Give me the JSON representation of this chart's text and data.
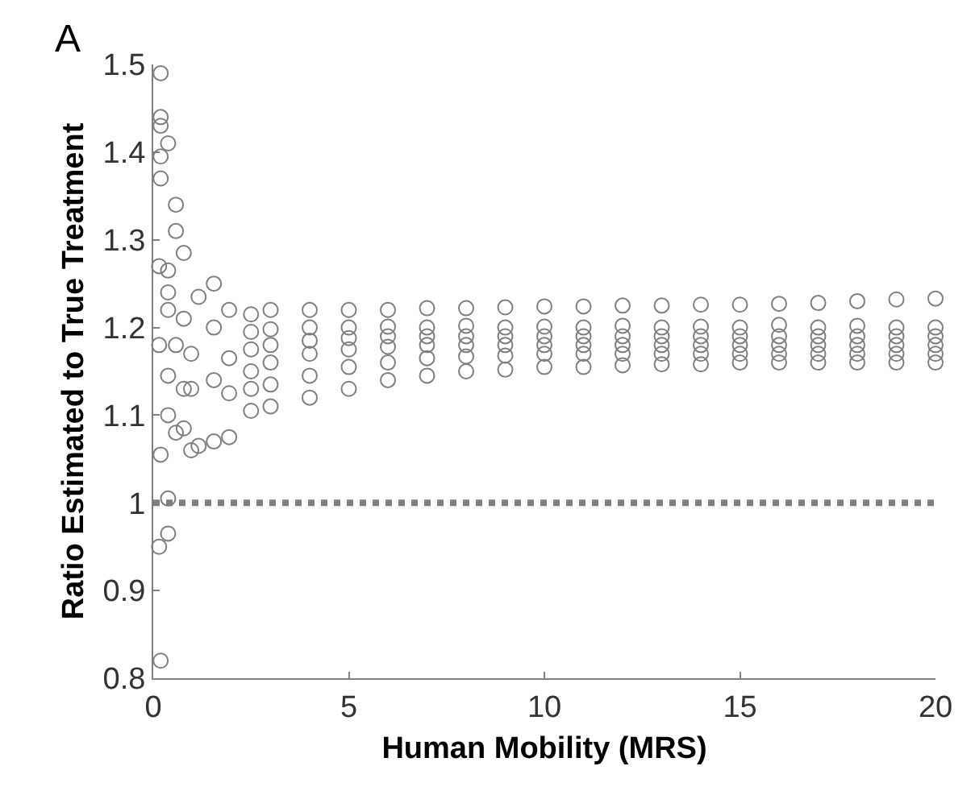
{
  "chart_data": {
    "type": "scatter",
    "xlabel": "Human Mobility (MRS)",
    "ylabel": "Ratio Estimated to True Treatment",
    "annotations": [
      "A"
    ],
    "xlim": [
      0,
      20
    ],
    "xticks": [
      0,
      5,
      10,
      15,
      20
    ],
    "ylim": [
      0.8,
      1.5
    ],
    "yticks": [
      0.8,
      0.9,
      1,
      1.1,
      1.2,
      1.3,
      1.4,
      1.5
    ],
    "marker": "circle",
    "ref_lines": [
      {
        "axis": "y",
        "value": 1,
        "color": "#7f7f7f",
        "line_style": "dotted"
      }
    ],
    "series": [
      {
        "color": "#7f7f7f",
        "x": [
          0.19,
          0.19,
          0.19,
          0.19,
          0.19,
          0.38,
          0.58,
          0.58,
          0.78,
          0.15,
          0.38,
          0.38,
          0.38,
          0.15,
          0.58,
          0.38,
          0.38,
          0.19,
          0.58,
          0.78,
          0.38,
          0.38,
          0.15,
          0.19,
          0.78,
          0.97,
          0.97,
          1.16,
          1.16,
          1.55,
          1.55,
          1.55,
          1.55,
          1.94,
          1.94,
          1.94,
          1.94,
          0.78,
          0.97,
          2.5,
          3,
          4,
          5,
          6,
          7,
          8,
          9,
          10,
          11,
          12,
          13,
          14,
          15,
          16,
          17,
          18,
          19,
          20,
          2.5,
          3,
          4,
          5,
          6,
          7,
          8,
          9,
          10,
          11,
          12,
          13,
          14,
          15,
          16,
          17,
          18,
          19,
          20,
          2.5,
          3,
          4,
          5,
          6,
          7,
          8,
          9,
          10,
          11,
          12,
          13,
          14,
          15,
          16,
          17,
          18,
          19,
          20,
          2.5,
          3,
          4,
          5,
          6,
          7,
          8,
          9,
          10,
          11,
          12,
          13,
          14,
          15,
          16,
          17,
          18,
          19,
          20,
          2.5,
          3,
          4,
          5,
          6,
          7,
          8,
          9,
          10,
          11,
          12,
          13,
          14,
          15,
          16,
          17,
          18,
          19,
          20,
          2.5,
          3,
          4,
          5,
          6,
          7,
          8,
          9,
          10,
          11,
          12,
          13,
          14,
          15,
          16,
          17,
          18,
          19,
          20
        ],
        "values": [
          1.49,
          1.44,
          1.43,
          1.395,
          1.37,
          1.41,
          1.34,
          1.31,
          1.285,
          1.27,
          1.265,
          1.24,
          1.22,
          1.18,
          1.18,
          1.145,
          1.1,
          1.055,
          1.08,
          1.085,
          1.005,
          0.965,
          0.95,
          0.82,
          1.21,
          1.17,
          1.13,
          1.235,
          1.065,
          1.25,
          1.2,
          1.14,
          1.07,
          1.075,
          1.22,
          1.165,
          1.125,
          1.13,
          1.06,
          1.215,
          1.22,
          1.22,
          1.22,
          1.22,
          1.222,
          1.222,
          1.223,
          1.224,
          1.224,
          1.225,
          1.225,
          1.226,
          1.226,
          1.227,
          1.228,
          1.23,
          1.232,
          1.233,
          1.195,
          1.198,
          1.2,
          1.2,
          1.201,
          1.2,
          1.202,
          1.2,
          1.201,
          1.2,
          1.202,
          1.2,
          1.201,
          1.2,
          1.203,
          1.2,
          1.202,
          1.2,
          1.2,
          1.175,
          1.18,
          1.185,
          1.188,
          1.19,
          1.19,
          1.19,
          1.19,
          1.19,
          1.19,
          1.19,
          1.19,
          1.19,
          1.19,
          1.19,
          1.19,
          1.19,
          1.19,
          1.19,
          1.15,
          1.16,
          1.17,
          1.175,
          1.178,
          1.18,
          1.18,
          1.18,
          1.18,
          1.18,
          1.18,
          1.18,
          1.18,
          1.18,
          1.18,
          1.18,
          1.18,
          1.18,
          1.18,
          1.13,
          1.135,
          1.145,
          1.155,
          1.16,
          1.165,
          1.167,
          1.168,
          1.17,
          1.17,
          1.17,
          1.17,
          1.17,
          1.17,
          1.17,
          1.17,
          1.17,
          1.17,
          1.17,
          1.105,
          1.11,
          1.12,
          1.13,
          1.14,
          1.145,
          1.15,
          1.152,
          1.155,
          1.155,
          1.157,
          1.158,
          1.158,
          1.16,
          1.16,
          1.16,
          1.16,
          1.16,
          1.16
        ]
      }
    ]
  }
}
